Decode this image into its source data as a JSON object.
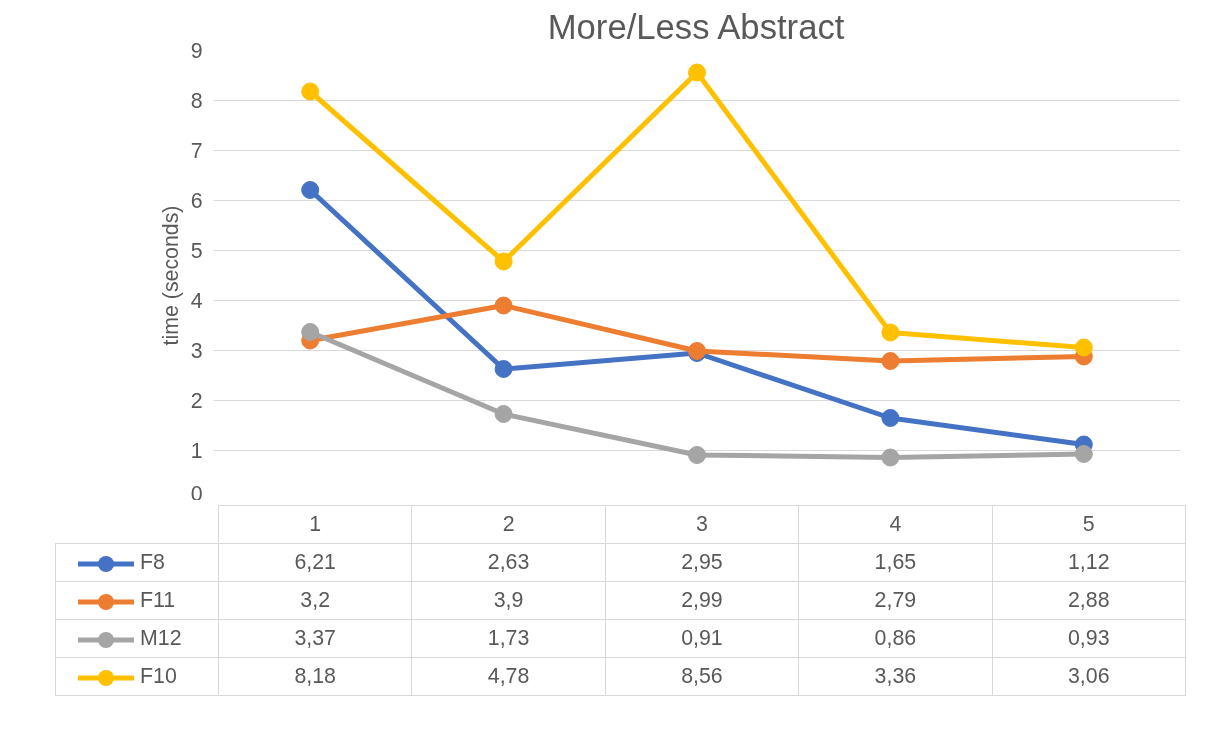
{
  "chart_data": {
    "type": "line",
    "title": "More/Less Abstract",
    "ylabel": "time (seconds)",
    "categories": [
      "1",
      "2",
      "3",
      "4",
      "5"
    ],
    "series": [
      {
        "name": "F8",
        "color": "#4472c4",
        "values": [
          6.21,
          2.63,
          2.95,
          1.65,
          1.12
        ],
        "value_labels": [
          "6,21",
          "2,63",
          "2,95",
          "1,65",
          "1,12"
        ]
      },
      {
        "name": "F11",
        "color": "#ed7d31",
        "values": [
          3.2,
          3.9,
          2.99,
          2.79,
          2.88
        ],
        "value_labels": [
          "3,2",
          "3,9",
          "2,99",
          "2,79",
          "2,88"
        ]
      },
      {
        "name": "M12",
        "color": "#a5a5a5",
        "values": [
          3.37,
          1.73,
          0.91,
          0.86,
          0.93
        ],
        "value_labels": [
          "3,37",
          "1,73",
          "0,91",
          "0,86",
          "0,93"
        ]
      },
      {
        "name": "F10",
        "color": "#ffc000",
        "values": [
          8.18,
          4.78,
          8.56,
          3.36,
          3.06
        ],
        "value_labels": [
          "8,18",
          "4,78",
          "8,56",
          "3,36",
          "3,06"
        ]
      }
    ],
    "ylim": [
      0,
      9
    ],
    "yticks": [
      0,
      1,
      2,
      3,
      4,
      5,
      6,
      7,
      8,
      9
    ],
    "grid": "y",
    "legend": "bottom",
    "marker": "circle",
    "line_style": "solid"
  }
}
